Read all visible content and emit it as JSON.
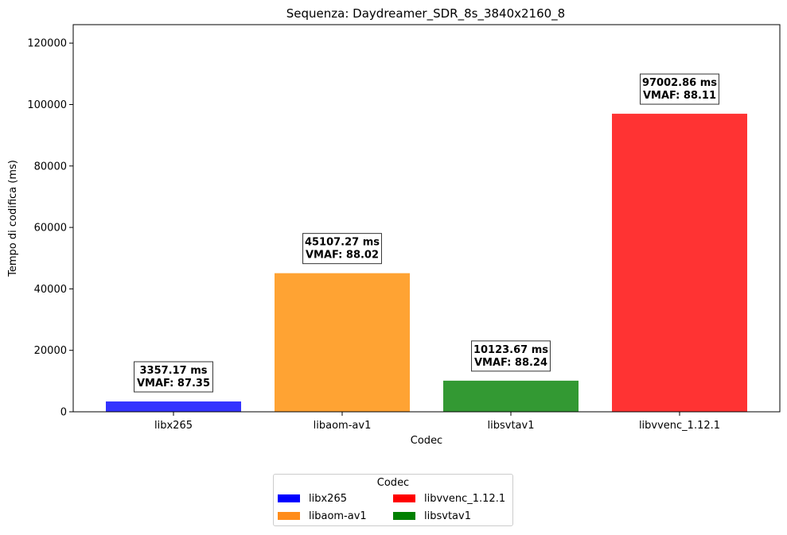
{
  "chart_data": {
    "type": "bar",
    "title": "Sequenza: Daydreamer_SDR_8s_3840x2160_8",
    "xlabel": "Codec",
    "ylabel": "Tempo di codifica (ms)",
    "ylim": [
      0,
      126000
    ],
    "yticks": [
      0,
      20000,
      40000,
      60000,
      80000,
      100000,
      120000
    ],
    "categories": [
      "libx265",
      "libaom-av1",
      "libsvtav1",
      "libvvenc_1.12.1"
    ],
    "values": [
      3357.17,
      45107.27,
      10123.67,
      97002.86
    ],
    "colors": [
      "#3333ff",
      "#ffa333",
      "#339933",
      "#ff3333"
    ],
    "annotations": [
      {
        "line1": "3357.17 ms",
        "line2": "VMAF: 87.35"
      },
      {
        "line1": "45107.27 ms",
        "line2": "VMAF: 88.02"
      },
      {
        "line1": "10123.67 ms",
        "line2": "VMAF: 88.24"
      },
      {
        "line1": "97002.86 ms",
        "line2": "VMAF: 88.11"
      }
    ],
    "legend": {
      "title": "Codec",
      "placement": "bottom-center",
      "entries": [
        {
          "label": "libx265",
          "color": "#0000ff"
        },
        {
          "label": "libaom-av1",
          "color": "#ff8c1a"
        },
        {
          "label": "libvvenc_1.12.1",
          "color": "#ff0000"
        },
        {
          "label": "libsvtav1",
          "color": "#008000"
        }
      ]
    },
    "grid": false
  }
}
